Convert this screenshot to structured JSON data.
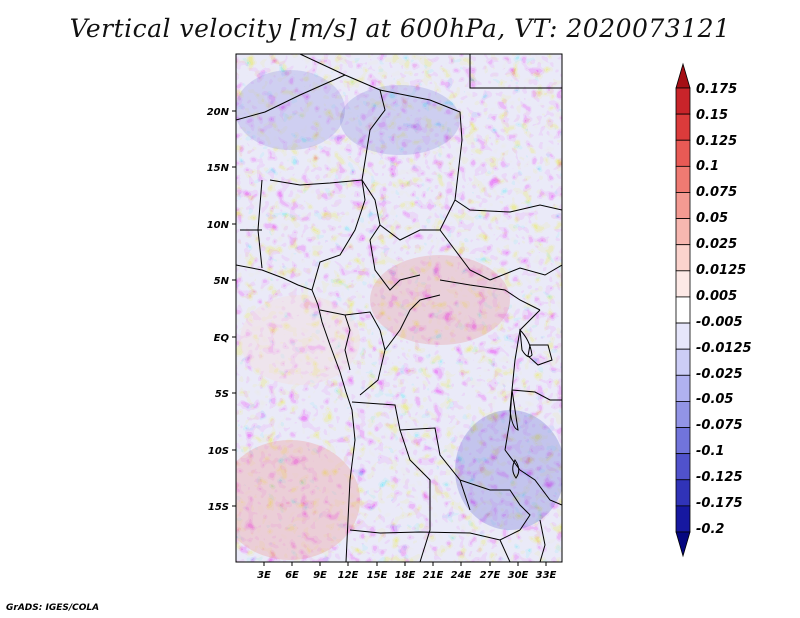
{
  "title": "Vertical velocity [m/s] at 600hPa, VT: 2020073121",
  "credit": "GrADS: IGES/COLA",
  "map": {
    "variable": "Vertical velocity",
    "units": "m/s",
    "level": "600hPa",
    "valid_time": "2020073121",
    "lat_labels": [
      "20N",
      "15N",
      "10N",
      "5N",
      "EQ",
      "5S",
      "10S",
      "15S"
    ],
    "lon_labels": [
      "3E",
      "6E",
      "9E",
      "12E",
      "15E",
      "18E",
      "21E",
      "24E",
      "27E",
      "30E",
      "33E"
    ]
  },
  "colorbar": {
    "labels": [
      "0.175",
      "0.15",
      "0.125",
      "0.1",
      "0.075",
      "0.05",
      "0.025",
      "0.0125",
      "0.005",
      "-0.005",
      "-0.0125",
      "-0.025",
      "-0.05",
      "-0.075",
      "-0.1",
      "-0.125",
      "-0.175",
      "-0.2"
    ],
    "colors": [
      "#a50f15",
      "#c8242a",
      "#db3b3b",
      "#e85a55",
      "#ef7a72",
      "#f39a92",
      "#f7b7b0",
      "#fbd3cd",
      "#fde9e6",
      "#ffffff",
      "#e6e6fb",
      "#cccdf6",
      "#b0b1f0",
      "#9294e6",
      "#7174db",
      "#5052cc",
      "#3033b8",
      "#1618a0",
      "#050780"
    ]
  }
}
